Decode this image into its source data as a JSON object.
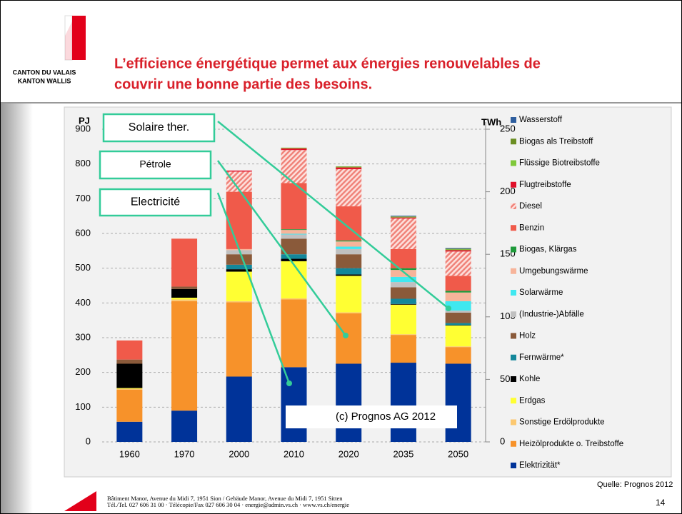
{
  "logo": {
    "line1": "CANTON DU VALAIS",
    "line2": "KANTON WALLIS"
  },
  "title_lines": [
    "L’efficience énergétique permet aux énergies renouvelables de",
    "couvrir une bonne partie des besoins."
  ],
  "chart_data": {
    "type": "stacked_bar",
    "y_label": "PJ",
    "y2_label": "TWh",
    "categories": [
      "1960",
      "1970",
      "2000",
      "2010",
      "2020",
      "2035",
      "2050"
    ],
    "ylim": [
      0,
      900
    ],
    "yticks": [
      0,
      100,
      200,
      300,
      400,
      500,
      600,
      700,
      800,
      900
    ],
    "y2lim": [
      0,
      250
    ],
    "y2ticks": [
      0,
      50,
      100,
      150,
      200,
      250
    ],
    "grid": true,
    "legend": "right",
    "series": [
      {
        "name": "Elektrizität*",
        "color": "#003399",
        "values": [
          58,
          90,
          188,
          215,
          225,
          228,
          225
        ]
      },
      {
        "name": "Heizölprodukte o. Treibstoffe",
        "color": "#f7922a",
        "values": [
          92,
          315,
          214,
          195,
          145,
          80,
          48
        ]
      },
      {
        "name": "Sonstige Erdölprodukte",
        "color": "#fcc870",
        "values": [
          3,
          5,
          3,
          3,
          3,
          2,
          2
        ]
      },
      {
        "name": "Erdgas",
        "color": "#ffff33",
        "values": [
          2,
          5,
          85,
          107,
          105,
          85,
          60
        ]
      },
      {
        "name": "Kohle",
        "color": "#000000",
        "values": [
          70,
          25,
          7,
          7,
          4,
          2,
          1
        ]
      },
      {
        "name": "Fernwärme*",
        "color": "#13879a",
        "values": [
          0,
          0,
          13,
          13,
          18,
          15,
          6
        ]
      },
      {
        "name": "Holz",
        "color": "#8a5a3a",
        "values": [
          12,
          7,
          30,
          45,
          40,
          33,
          30
        ]
      },
      {
        "name": "(Industrie-)Abfälle",
        "color": "#c0c0c0",
        "values": [
          0,
          0,
          12,
          12,
          15,
          15,
          6
        ]
      },
      {
        "name": "Solarwärme",
        "color": "#40e8f0",
        "values": [
          0,
          0,
          0,
          2,
          7,
          15,
          27
        ]
      },
      {
        "name": "Umgebungswärme",
        "color": "#f7b49a",
        "values": [
          0,
          0,
          3,
          11,
          15,
          20,
          25
        ]
      },
      {
        "name": "Biogas, Klärgas",
        "color": "#1f9a3a",
        "values": [
          0,
          0,
          0,
          2,
          3,
          5,
          5
        ]
      },
      {
        "name": "Benzin",
        "color": "#f05a4a",
        "values": [
          55,
          138,
          165,
          133,
          98,
          55,
          43
        ]
      },
      {
        "name": "Diesel",
        "color": "#f0837a",
        "hatched": true,
        "values": [
          0,
          0,
          58,
          95,
          107,
          88,
          70
        ]
      },
      {
        "name": "Flugtreibstoffe",
        "color": "#e0102a",
        "values": [
          0,
          0,
          3,
          5,
          5,
          3,
          4
        ]
      },
      {
        "name": "Flüssige Biotreibstoffe",
        "color": "#7fc83a",
        "values": [
          0,
          0,
          0,
          2,
          2,
          2,
          2
        ]
      },
      {
        "name": "Biogas als Treibstoff",
        "color": "#6b8e23",
        "values": [
          0,
          0,
          0,
          0,
          1,
          1,
          2
        ]
      },
      {
        "name": "Wasserstoff",
        "color": "#2e5e9e",
        "values": [
          0,
          0,
          0,
          0,
          0,
          2,
          2
        ]
      }
    ],
    "watermark": "(c) Prognos  AG 2012",
    "annotations": [
      "Solaire ther.",
      "Pétrole",
      "Electricité"
    ],
    "source": "Quelle: Prognos 2012"
  },
  "footer": {
    "line1": "Bâtiment Manor, Avenue du Midi 7, 1951 Sion / Gebäude Manor, Avenue du Midi 7, 1951 Sitten",
    "line2": "Tél./Tel. 027 606 31 00  ·  Télécopie/Fax 027 606 30 04  ·  energie@admin.vs.ch  ·  www.vs.ch/energie",
    "page": "14"
  }
}
